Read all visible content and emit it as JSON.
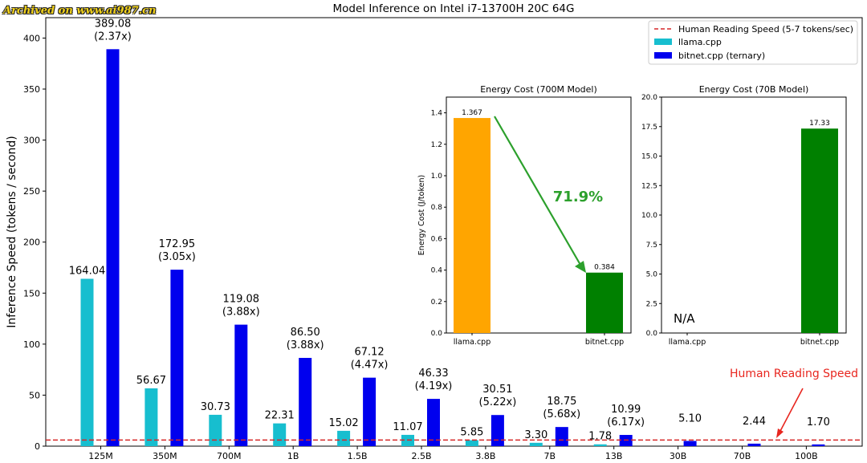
{
  "watermark": "Archived on www.ai987.cn",
  "colors": {
    "llama": "#17becf",
    "bitnet": "#0000ee",
    "ref_line": "#d62728",
    "energy_llama": "#ffa500",
    "energy_bitnet": "#008000",
    "arrow": "#2ca02c",
    "annotation": "#e8261f"
  },
  "chart_data": [
    {
      "type": "bar",
      "title": "Model Inference on Intel i7-13700H 20C 64G",
      "xlabel": "",
      "ylabel": "Inference Speed (tokens / second)",
      "ylim": [
        0,
        420
      ],
      "yticks": [
        0,
        50,
        100,
        150,
        200,
        250,
        300,
        350,
        400
      ],
      "grid": false,
      "legend_position": "top-right",
      "categories": [
        "125M",
        "350M",
        "700M",
        "1B",
        "1.5B",
        "2.5B",
        "3.8B",
        "7B",
        "13B",
        "30B",
        "70B",
        "100B"
      ],
      "series": [
        {
          "name": "llama.cpp",
          "values": [
            164.04,
            56.67,
            30.73,
            22.31,
            15.02,
            11.07,
            5.85,
            3.3,
            1.78,
            null,
            null,
            null
          ],
          "labels": [
            "164.04",
            "56.67",
            "30.73",
            "22.31",
            "15.02",
            "11.07",
            "5.85",
            "3.30",
            "1.78",
            "",
            "",
            ""
          ]
        },
        {
          "name": "bitnet.cpp (ternary)",
          "values": [
            389.08,
            172.95,
            119.08,
            86.5,
            67.12,
            46.33,
            30.51,
            18.75,
            10.99,
            5.1,
            2.44,
            1.7
          ],
          "labels": [
            "389.08",
            "172.95",
            "119.08",
            "86.50",
            "67.12",
            "46.33",
            "30.51",
            "18.75",
            "10.99",
            "5.10",
            "2.44",
            "1.70"
          ],
          "speedups": [
            "(2.37x)",
            "(3.05x)",
            "(3.88x)",
            "(3.88x)",
            "(4.47x)",
            "(4.19x)",
            "(5.22x)",
            "(5.68x)",
            "(6.17x)",
            "",
            "",
            ""
          ]
        }
      ],
      "reference_line": {
        "name": "Human Reading Speed (5-7 tokens/sec)",
        "value": 6
      },
      "annotation": "Human Reading Speed"
    },
    {
      "type": "bar",
      "title": "Energy Cost (700M Model)",
      "ylabel": "Energy Cost (J/token)",
      "ylim": [
        0,
        1.5
      ],
      "yticks": [
        "0.0",
        "0.2",
        "0.4",
        "0.6",
        "0.8",
        "1.0",
        "1.2",
        "1.4"
      ],
      "categories": [
        "llama.cpp",
        "bitnet.cpp"
      ],
      "values": [
        1.367,
        0.384
      ],
      "labels": [
        "1.367",
        "0.384"
      ],
      "reduction": "71.9%"
    },
    {
      "type": "bar",
      "title": "Energy Cost (70B Model)",
      "ylim": [
        0,
        20
      ],
      "yticks": [
        "0.0",
        "2.5",
        "5.0",
        "7.5",
        "10.0",
        "12.5",
        "15.0",
        "17.5",
        "20.0"
      ],
      "categories": [
        "llama.cpp",
        "bitnet.cpp"
      ],
      "values": [
        null,
        17.33
      ],
      "labels": [
        "",
        "17.33"
      ],
      "na_label": "N/A"
    }
  ]
}
